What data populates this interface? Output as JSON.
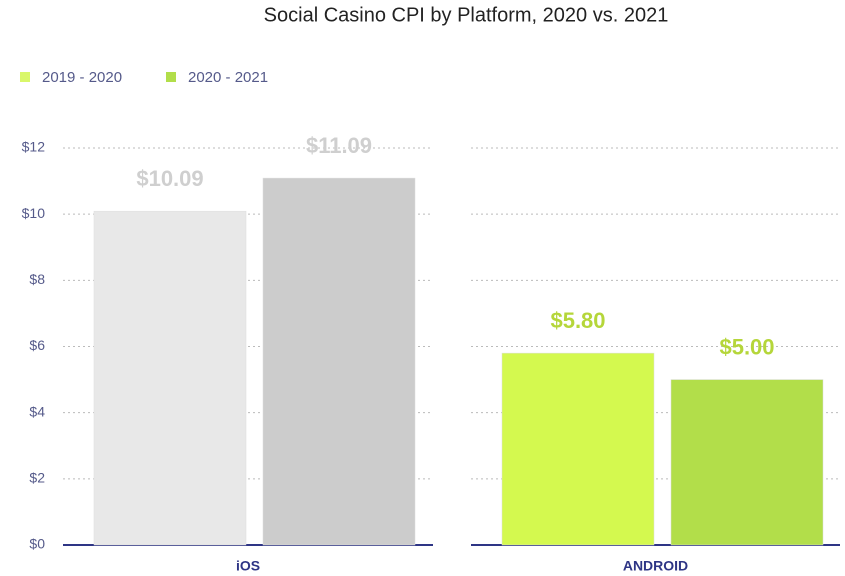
{
  "chart_data": {
    "type": "bar",
    "title": "Social Casino CPI by Platform, 2020 vs. 2021",
    "categories": [
      "iOS",
      "ANDROID"
    ],
    "series": [
      {
        "name": "2019 - 2020",
        "color": "#d9f76a",
        "colors": [
          "#e8e8e8",
          "#d4f94f"
        ],
        "label_colors": [
          "#cfcfcf",
          "#b5d63a"
        ],
        "values": [
          10.09,
          5.8
        ],
        "value_labels": [
          "$10.09",
          "$5.80"
        ]
      },
      {
        "name": "2020 - 2021",
        "color": "#b2de4a",
        "colors": [
          "#cccccc",
          "#b2de4a"
        ],
        "label_colors": [
          "#cfcfcf",
          "#b5d63a"
        ],
        "values": [
          11.09,
          5.0
        ],
        "value_labels": [
          "$11.09",
          "$5.00"
        ]
      }
    ],
    "ylim": [
      0,
      12
    ],
    "yticks": [
      {
        "value": 0,
        "label": "$0"
      },
      {
        "value": 2,
        "label": "$2"
      },
      {
        "value": 4,
        "label": "$4"
      },
      {
        "value": 6,
        "label": "$6"
      },
      {
        "value": 8,
        "label": "$8"
      },
      {
        "value": 10,
        "label": "$10"
      },
      {
        "value": 12,
        "label": "$12"
      }
    ],
    "grid": true
  }
}
